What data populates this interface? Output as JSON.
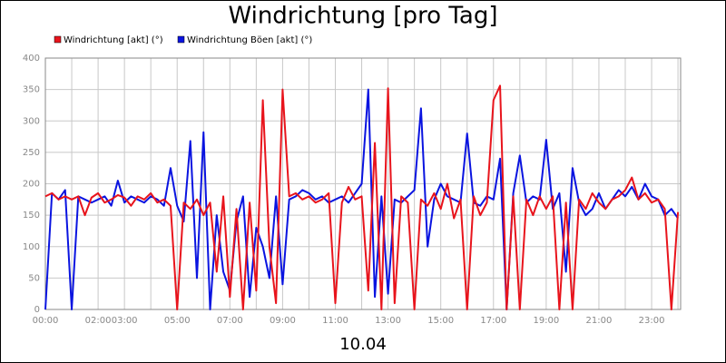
{
  "chart_data": {
    "type": "line",
    "title": "Windrichtung [pro Tag]",
    "xlabel": "10.04",
    "x": [
      0,
      0.25,
      0.5,
      0.75,
      1,
      1.25,
      1.5,
      1.75,
      2,
      2.25,
      2.5,
      2.75,
      3,
      3.25,
      3.5,
      3.75,
      4,
      4.25,
      4.5,
      4.75,
      5,
      5.25,
      5.5,
      5.75,
      6,
      6.25,
      6.5,
      6.75,
      7,
      7.25,
      7.5,
      7.75,
      8,
      8.25,
      8.5,
      8.75,
      9,
      9.25,
      9.5,
      9.75,
      10,
      10.25,
      10.5,
      10.75,
      11,
      11.25,
      11.5,
      11.75,
      12,
      12.25,
      12.5,
      12.75,
      13,
      13.25,
      13.5,
      13.75,
      14,
      14.25,
      14.5,
      14.75,
      15,
      15.25,
      15.5,
      15.75,
      16,
      16.25,
      16.5,
      16.75,
      17,
      17.25,
      17.5,
      17.75,
      18,
      18.25,
      18.5,
      18.75,
      19,
      19.25,
      19.5,
      19.75,
      20,
      20.25,
      20.5,
      20.75,
      21,
      21.25,
      21.5,
      21.75,
      22,
      22.25,
      22.5,
      22.75,
      23,
      23.25,
      23.5,
      23.75,
      24
    ],
    "series": [
      {
        "name": "Windrichtung [akt] (°)",
        "color": "#e8141c",
        "values": [
          180,
          185,
          175,
          180,
          175,
          180,
          150,
          178,
          185,
          170,
          175,
          182,
          178,
          165,
          180,
          175,
          185,
          170,
          175,
          165,
          0,
          170,
          160,
          175,
          150,
          170,
          60,
          180,
          20,
          160,
          0,
          170,
          30,
          333,
          100,
          10,
          350,
          180,
          185,
          175,
          180,
          170,
          175,
          185,
          10,
          170,
          195,
          175,
          180,
          30,
          265,
          0,
          352,
          10,
          180,
          170,
          0,
          175,
          165,
          185,
          160,
          200,
          145,
          175,
          0,
          180,
          150,
          170,
          333,
          356,
          0,
          180,
          0,
          175,
          150,
          180,
          160,
          180,
          0,
          170,
          0,
          175,
          160,
          185,
          170,
          160,
          175,
          180,
          190,
          210,
          175,
          185,
          170,
          175,
          160,
          0,
          155
        ]
      },
      {
        "name": "Windrichtung Böen [akt] (°)",
        "color": "#0a14e0",
        "values": [
          0,
          185,
          175,
          190,
          0,
          180,
          175,
          170,
          175,
          180,
          165,
          205,
          170,
          180,
          175,
          170,
          180,
          175,
          165,
          225,
          165,
          140,
          268,
          50,
          282,
          0,
          150,
          60,
          30,
          140,
          180,
          20,
          130,
          100,
          50,
          180,
          40,
          175,
          180,
          190,
          185,
          175,
          180,
          170,
          175,
          180,
          170,
          185,
          200,
          350,
          20,
          180,
          25,
          175,
          170,
          180,
          190,
          320,
          100,
          175,
          200,
          180,
          175,
          170,
          280,
          170,
          165,
          180,
          175,
          240,
          0,
          185,
          245,
          170,
          180,
          175,
          270,
          160,
          185,
          60,
          225,
          170,
          150,
          160,
          185,
          160,
          175,
          190,
          180,
          195,
          175,
          200,
          180,
          175,
          150,
          160,
          145
        ]
      }
    ],
    "xlim": [
      0,
      24.1
    ],
    "xticks": [
      {
        "value": 0,
        "label": "00:00"
      },
      {
        "value": 2,
        "label": "02:00"
      },
      {
        "value": 3,
        "label": "03:00"
      },
      {
        "value": 5,
        "label": "05:00"
      },
      {
        "value": 7,
        "label": "07:00"
      },
      {
        "value": 9,
        "label": "09:00"
      },
      {
        "value": 11,
        "label": "11:00"
      },
      {
        "value": 13,
        "label": "13:00"
      },
      {
        "value": 15,
        "label": "15:00"
      },
      {
        "value": 17,
        "label": "17:00"
      },
      {
        "value": 19,
        "label": "19:00"
      },
      {
        "value": 21,
        "label": "21:00"
      },
      {
        "value": 23,
        "label": "23:00"
      }
    ],
    "xgrid_minor": [
      1,
      4,
      6,
      8,
      10,
      12,
      14,
      16,
      18,
      20,
      22,
      24
    ],
    "ylim": [
      0,
      400
    ],
    "yticks": [
      0,
      50,
      100,
      150,
      200,
      250,
      300,
      350,
      400
    ],
    "grid": true
  }
}
